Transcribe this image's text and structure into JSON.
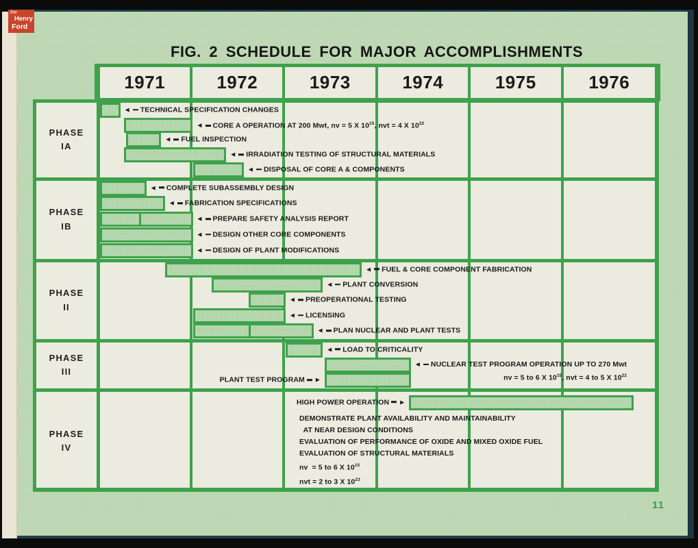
{
  "meta": {
    "page_number": "11"
  },
  "logo": {
    "line_the": "the",
    "line_henry": "Henry",
    "line_ford": "Ford"
  },
  "colors": {
    "accent_green": "#3ea24c",
    "bar_fill": "#b8d8b0",
    "cell_offwhite": "#ecebe0",
    "page_green": "#bed8b4",
    "logo_red": "#c9452a",
    "page_number_green": "#2fa24a"
  },
  "chart_data": {
    "type": "bar",
    "subtype": "gantt-schedule",
    "title": "FIG. 2 SCHEDULE FOR MAJOR ACCOMPLISHMENTS",
    "x_axis": {
      "unit": "year",
      "ticks": [
        "1971",
        "1972",
        "1973",
        "1974",
        "1975",
        "1976"
      ],
      "range": [
        1971,
        1977
      ],
      "grid": true
    },
    "phases": [
      {
        "id": "IA",
        "label_lines": [
          "PHASE",
          "IA"
        ],
        "tasks": [
          {
            "label": "TECHNICAL SPECIFICATION CHANGES",
            "start": 1971.0,
            "end": 1971.22,
            "arrow": "left"
          },
          {
            "label": "CORE A OPERATION AT 200 Mwt, nv = 5 X 10^15, nvt = 4 X 10^22",
            "start": 1971.26,
            "end": 1972.0,
            "arrow": "left"
          },
          {
            "label": "FUEL INSPECTION",
            "start": 1971.28,
            "end": 1971.66,
            "arrow": "left"
          },
          {
            "label": "IRRADIATION TESTING OF STRUCTURAL MATERIALS",
            "start": 1971.26,
            "end": 1972.36,
            "arrow": "left"
          },
          {
            "label": "DISPOSAL OF CORE A & COMPONENTS",
            "start": 1972.0,
            "end": 1972.55,
            "arrow": "left"
          }
        ]
      },
      {
        "id": "IB",
        "label_lines": [
          "PHASE",
          "IB"
        ],
        "tasks": [
          {
            "label": "COMPLETE SUBASSEMBLY DESIGN",
            "start": 1971.0,
            "end": 1971.5,
            "arrow": "left"
          },
          {
            "label": "FABRICATION SPECIFICATIONS",
            "start": 1971.0,
            "end": 1971.7,
            "arrow": "left"
          },
          {
            "label": "PREPARE SAFETY ANALYSIS REPORT",
            "start": 1971.0,
            "end": 1972.0,
            "arrow": "left",
            "split_at": 1971.42
          },
          {
            "label": "DESIGN OTHER CORE COMPONENTS",
            "start": 1971.0,
            "end": 1972.0,
            "arrow": "left"
          },
          {
            "label": "DESIGN OF PLANT MODIFICATIONS",
            "start": 1971.0,
            "end": 1972.0,
            "arrow": "left"
          }
        ]
      },
      {
        "id": "II",
        "label_lines": [
          "PHASE",
          "II"
        ],
        "tasks": [
          {
            "label": "FUEL & CORE COMPONENT FABRICATION",
            "start": 1971.7,
            "end": 1973.82,
            "arrow": "left"
          },
          {
            "label": "PLANT CONVERSION",
            "start": 1972.2,
            "end": 1973.4,
            "arrow": "left"
          },
          {
            "label": "PREOPERATIONAL TESTING",
            "start": 1972.6,
            "end": 1973.0,
            "arrow": "left"
          },
          {
            "label": "LICENSING",
            "start": 1972.0,
            "end": 1973.0,
            "arrow": "left"
          },
          {
            "label": "PLAN NUCLEAR AND PLANT TESTS",
            "start": 1972.0,
            "end": 1973.3,
            "arrow": "left",
            "split_at": 1972.6
          }
        ]
      },
      {
        "id": "III",
        "label_lines": [
          "PHASE",
          "III"
        ],
        "tasks": [
          {
            "label": "LOAD TO CRITICALITY",
            "start": 1973.0,
            "end": 1973.4,
            "arrow": "left"
          },
          {
            "label": "NUCLEAR TEST PROGRAM OPERATION UP TO 270 Mwt",
            "sublabel": "nv = 5 to 6 X 10^15, nvt = 4 to 5 X 10^22",
            "start": 1973.42,
            "end": 1974.35,
            "arrow": "left"
          },
          {
            "label": "PLANT TEST PROGRAM",
            "start": 1973.42,
            "end": 1974.35,
            "arrow": "right"
          }
        ]
      },
      {
        "id": "IV",
        "label_lines": [
          "PHASE",
          "IV"
        ],
        "tasks": [
          {
            "label": "HIGH POWER OPERATION",
            "start": 1974.33,
            "end": 1976.75,
            "arrow": "right"
          }
        ],
        "notes": [
          "DEMONSTRATE PLANT AVAILABILITY AND MAINTAINABILITY",
          "  AT NEAR DESIGN CONDITIONS",
          "EVALUATION OF PERFORMANCE OF OXIDE AND MIXED OXIDE FUEL",
          "EVALUATION OF STRUCTURAL MATERIALS",
          "nv  = 5 to 6 X 10^15",
          "nvt = 2 to 3 X 10^23"
        ]
      }
    ]
  }
}
